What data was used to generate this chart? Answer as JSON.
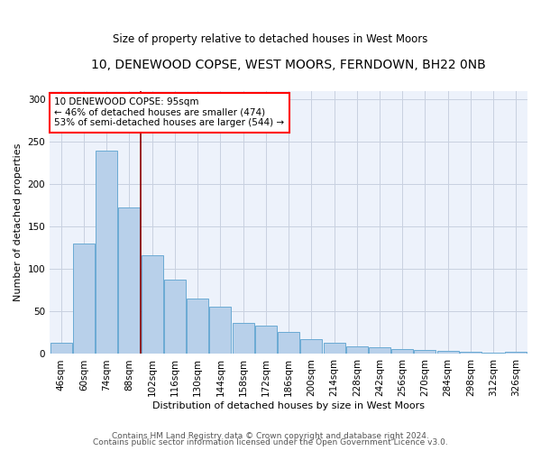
{
  "title": "10, DENEWOOD COPSE, WEST MOORS, FERNDOWN, BH22 0NB",
  "subtitle": "Size of property relative to detached houses in West Moors",
  "xlabel": "Distribution of detached houses by size in West Moors",
  "ylabel": "Number of detached properties",
  "categories": [
    "46sqm",
    "60sqm",
    "74sqm",
    "88sqm",
    "102sqm",
    "116sqm",
    "130sqm",
    "144sqm",
    "158sqm",
    "172sqm",
    "186sqm",
    "200sqm",
    "214sqm",
    "228sqm",
    "242sqm",
    "256sqm",
    "270sqm",
    "284sqm",
    "298sqm",
    "312sqm",
    "326sqm"
  ],
  "bar_values": [
    13,
    130,
    240,
    173,
    116,
    88,
    65,
    56,
    37,
    33,
    26,
    17,
    13,
    9,
    8,
    6,
    5,
    4,
    3,
    2,
    3
  ],
  "bar_color": "#b8d0ea",
  "bar_edge_color": "#6aaad4",
  "vline_color": "#8b0000",
  "vline_x_index": 3.5,
  "annotation_text": "10 DENEWOOD COPSE: 95sqm\n← 46% of detached houses are smaller (474)\n53% of semi-detached houses are larger (544) →",
  "background_color": "#edf2fb",
  "ylim": [
    0,
    310
  ],
  "grid_color": "#c8d0e0",
  "footer1": "Contains HM Land Registry data © Crown copyright and database right 2024.",
  "footer2": "Contains public sector information licensed under the Open Government Licence v3.0."
}
